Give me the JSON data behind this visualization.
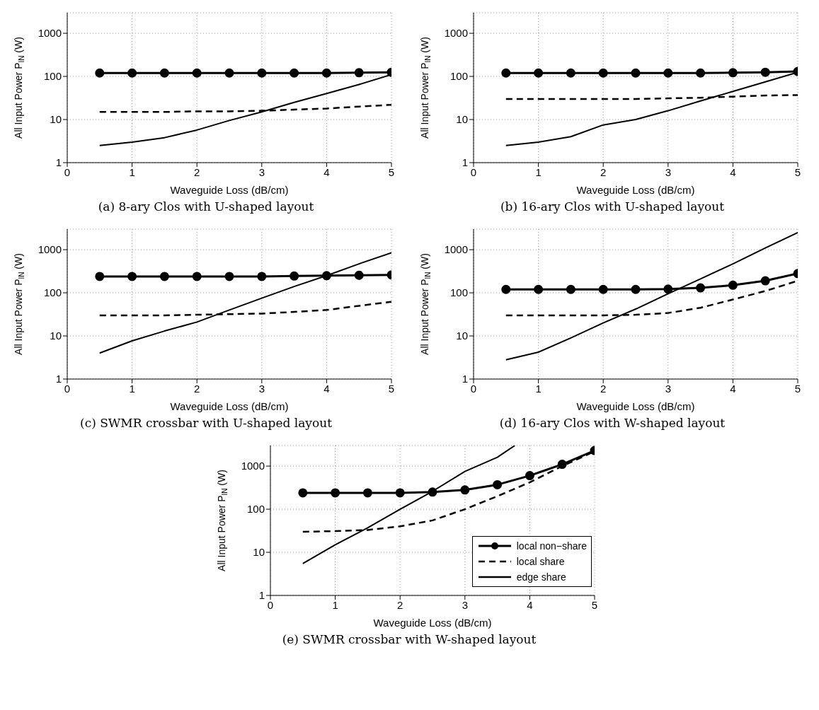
{
  "chart_data": [
    {
      "type": "line",
      "title": "(a) 8-ary Clos with U-shaped layout",
      "xlabel": "Waveguide Loss (dB/cm)",
      "ylabel": "All Input Power P$_{IN}$ (W)",
      "xlim": [
        0,
        5
      ],
      "xticks": [
        0,
        1,
        2,
        3,
        4,
        5
      ],
      "ylim": [
        1,
        3000
      ],
      "yticks": [
        1,
        10,
        100,
        1000
      ],
      "log": "y",
      "grid": true,
      "legend": false,
      "x": [
        0.5,
        1,
        1.5,
        2,
        2.5,
        3,
        3.5,
        4,
        4.5,
        5
      ],
      "series": [
        {
          "color": "#000000",
          "marker": "circle",
          "line_style": "solid",
          "values": [
            120,
            120,
            120,
            120,
            120,
            120,
            120,
            120,
            122,
            125
          ]
        },
        {
          "color": "#000000",
          "marker": "none",
          "line_style": "dashed",
          "values": [
            15,
            15,
            15,
            15.5,
            15.5,
            16,
            17,
            18,
            20,
            22
          ]
        },
        {
          "color": "#000000",
          "marker": "none",
          "line_style": "solid",
          "values": [
            2.5,
            3,
            3.8,
            5.7,
            9.5,
            15,
            25,
            40,
            65,
            110
          ]
        }
      ]
    },
    {
      "type": "line",
      "title": "(b) 16-ary Clos with U-shaped layout",
      "xlabel": "Waveguide Loss (dB/cm)",
      "ylabel": "All Input Power P$_{IN}$ (W)",
      "xlim": [
        0,
        5
      ],
      "xticks": [
        0,
        1,
        2,
        3,
        4,
        5
      ],
      "ylim": [
        1,
        3000
      ],
      "yticks": [
        1,
        10,
        100,
        1000
      ],
      "log": "y",
      "grid": true,
      "legend": false,
      "x": [
        0.5,
        1,
        1.5,
        2,
        2.5,
        3,
        3.5,
        4,
        4.5,
        5
      ],
      "series": [
        {
          "color": "#000000",
          "marker": "circle",
          "line_style": "solid",
          "values": [
            120,
            120,
            120,
            120,
            120,
            120,
            120,
            122,
            125,
            130
          ]
        },
        {
          "color": "#000000",
          "marker": "none",
          "line_style": "dashed",
          "values": [
            30,
            30,
            30,
            30,
            30,
            31,
            32,
            34,
            36,
            37
          ]
        },
        {
          "color": "#000000",
          "marker": "none",
          "line_style": "solid",
          "values": [
            2.5,
            3,
            4,
            7.5,
            10,
            16,
            27,
            45,
            75,
            125
          ]
        }
      ]
    },
    {
      "type": "line",
      "title": "(c) SWMR crossbar with U-shaped layout",
      "xlabel": "Waveguide Loss (dB/cm)",
      "ylabel": "All Input Power P$_{IN}$ (W)",
      "xlim": [
        0,
        5
      ],
      "xticks": [
        0,
        1,
        2,
        3,
        4,
        5
      ],
      "ylim": [
        1,
        3000
      ],
      "yticks": [
        1,
        10,
        100,
        1000
      ],
      "log": "y",
      "grid": true,
      "legend": false,
      "x": [
        0.5,
        1,
        1.5,
        2,
        2.5,
        3,
        3.5,
        4,
        4.5,
        5
      ],
      "series": [
        {
          "color": "#000000",
          "marker": "circle",
          "line_style": "solid",
          "values": [
            240,
            240,
            240,
            240,
            240,
            240,
            245,
            250,
            255,
            260
          ]
        },
        {
          "color": "#000000",
          "marker": "none",
          "line_style": "dashed",
          "values": [
            30,
            30,
            30,
            31,
            32,
            33,
            36,
            40,
            50,
            62
          ]
        },
        {
          "color": "#000000",
          "marker": "none",
          "line_style": "solid",
          "values": [
            4,
            7.7,
            13,
            21,
            40,
            75,
            140,
            250,
            470,
            850
          ]
        }
      ]
    },
    {
      "type": "line",
      "title": "(d) 16-ary Clos with W-shaped layout",
      "xlabel": "Waveguide Loss (dB/cm)",
      "ylabel": "All Input Power P$_{IN}$ (W)",
      "xlim": [
        0,
        5
      ],
      "xticks": [
        0,
        1,
        2,
        3,
        4,
        5
      ],
      "ylim": [
        1,
        3000
      ],
      "yticks": [
        1,
        10,
        100,
        1000
      ],
      "log": "y",
      "grid": true,
      "legend": false,
      "x": [
        0.5,
        1,
        1.5,
        2,
        2.5,
        3,
        3.5,
        4,
        4.5,
        5
      ],
      "series": [
        {
          "color": "#000000",
          "marker": "circle",
          "line_style": "solid",
          "values": [
            120,
            120,
            120,
            120,
            120,
            122,
            130,
            150,
            190,
            280
          ]
        },
        {
          "color": "#000000",
          "marker": "none",
          "line_style": "dashed",
          "values": [
            30,
            30,
            30,
            30,
            31,
            34,
            45,
            70,
            110,
            190
          ]
        },
        {
          "color": "#000000",
          "marker": "none",
          "line_style": "solid",
          "values": [
            2.8,
            4.2,
            9,
            20,
            42,
            95,
            210,
            470,
            1100,
            2500
          ]
        }
      ]
    },
    {
      "type": "line",
      "title": "(e) SWMR crossbar with W-shaped layout",
      "xlabel": "Waveguide Loss (dB/cm)",
      "ylabel": "All Input Power P$_{IN}$ (W)",
      "xlim": [
        0,
        5
      ],
      "xticks": [
        0,
        1,
        2,
        3,
        4,
        5
      ],
      "ylim": [
        1,
        3000
      ],
      "yticks": [
        1,
        10,
        100,
        1000
      ],
      "log": "y",
      "grid": true,
      "legend": "bottom right",
      "x": [
        0.5,
        1,
        1.5,
        2,
        2.5,
        3,
        3.5,
        4,
        4.5,
        5
      ],
      "series": [
        {
          "name": "local non−share",
          "color": "#000000",
          "marker": "circle",
          "line_style": "solid",
          "values": [
            240,
            240,
            240,
            240,
            250,
            280,
            370,
            600,
            1100,
            2300
          ]
        },
        {
          "name": "local share",
          "color": "#000000",
          "marker": "none",
          "line_style": "dashed",
          "values": [
            30,
            31,
            33,
            40,
            55,
            100,
            200,
            420,
            1000,
            2200
          ]
        },
        {
          "name": "edge share",
          "color": "#000000",
          "marker": "none",
          "line_style": "solid",
          "x": [
            0.5,
            1,
            1.5,
            2,
            2.5,
            3,
            3.5,
            3.77
          ],
          "values": [
            5.5,
            15,
            37,
            100,
            260,
            750,
            1600,
            3000
          ]
        }
      ]
    }
  ]
}
